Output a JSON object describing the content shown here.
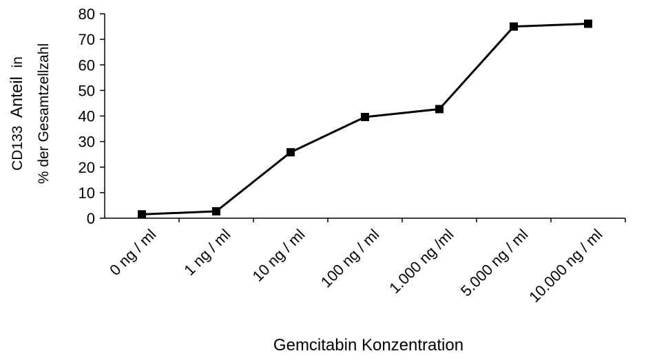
{
  "chart_data": {
    "type": "line",
    "title": "",
    "xlabel": "Gemcitabin Konzentration",
    "ylabel": {
      "line1_prefix": "CD133",
      "line1_main": "Anteil",
      "line1_suffix": "in",
      "line2": "% der Gesamtzellzahl"
    },
    "categories": [
      "0 ng / ml",
      "1 ng / ml",
      "10 ng / ml",
      "100 ng / ml",
      "1.000 ng /ml",
      "5.000 ng / ml",
      "10.000 ng / ml"
    ],
    "series": [
      {
        "values": [
          1.5,
          2.7,
          25.8,
          39.6,
          42.7,
          75.0,
          76.1
        ],
        "color": "#000000",
        "marker": "square"
      }
    ],
    "ylim": [
      0,
      80
    ],
    "yticks": [
      0,
      10,
      20,
      30,
      40,
      50,
      60,
      70,
      80
    ],
    "grid": false,
    "legend": "none"
  }
}
